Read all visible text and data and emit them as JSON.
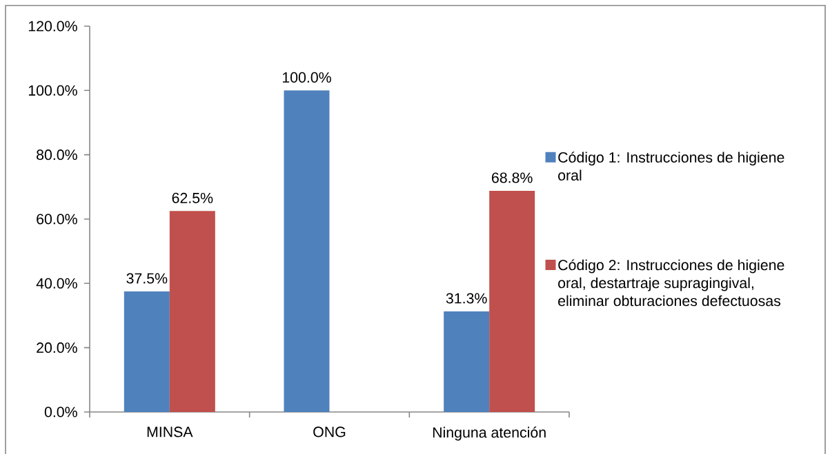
{
  "chart_data": {
    "type": "bar",
    "categories": [
      "MINSA",
      "ONG",
      "Ninguna atención"
    ],
    "series": [
      {
        "name": "Código 1: Instrucciones de higiene oral",
        "color": "#4f81bd",
        "values": [
          37.5,
          100.0,
          31.3
        ],
        "value_labels": [
          "37.5%",
          "100.0%",
          "31.3%"
        ]
      },
      {
        "name": "Código 2: Instrucciones de higiene oral, destartraje supragingival, eliminar obturaciones defectuosas",
        "color": "#c0504d",
        "values": [
          62.5,
          null,
          68.8
        ],
        "value_labels": [
          "62.5%",
          null,
          "68.8%"
        ]
      }
    ],
    "ylim": [
      0,
      120
    ],
    "yticks": [
      {
        "value": 0,
        "label": "0.0%"
      },
      {
        "value": 20,
        "label": "20.0%"
      },
      {
        "value": 40,
        "label": "40.0%"
      },
      {
        "value": 60,
        "label": "60.0%"
      },
      {
        "value": 80,
        "label": "80.0%"
      },
      {
        "value": 100,
        "label": "100.0%"
      },
      {
        "value": 120,
        "label": "120.0%"
      }
    ],
    "legend": "right"
  }
}
